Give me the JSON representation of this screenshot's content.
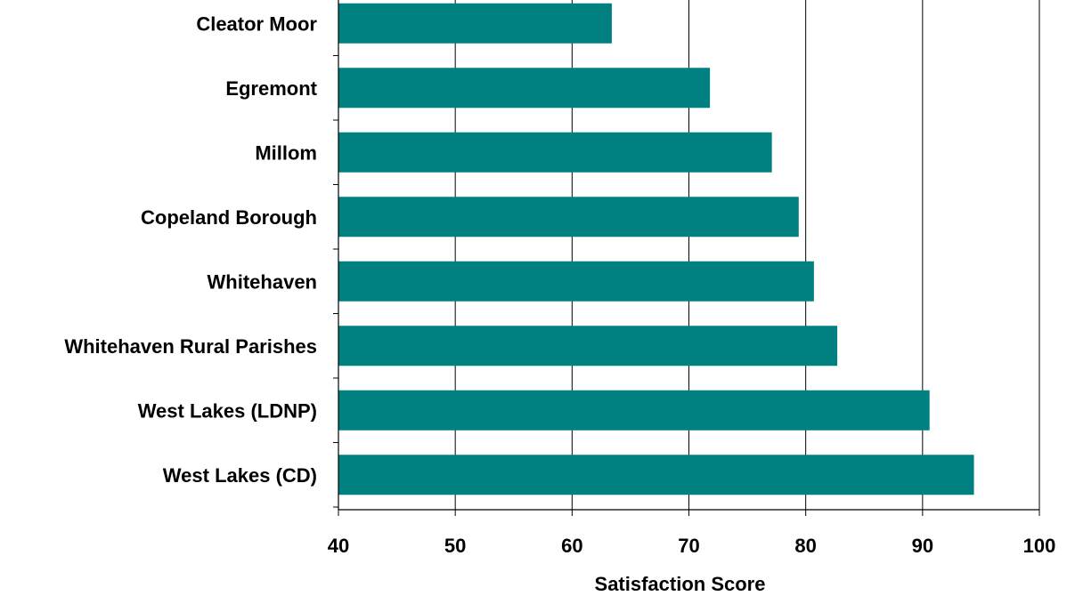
{
  "colors": {
    "bar": "#008080",
    "grid": "#000000",
    "axis": "#000000",
    "text": "#000000"
  },
  "chart_data": {
    "type": "bar",
    "orientation": "horizontal",
    "categories": [
      "Cleator Moor",
      "Egremont",
      "Millom",
      "Copeland Borough",
      "Whitehaven",
      "Whitehaven Rural Parishes",
      "West Lakes (LDNP)",
      "West Lakes (CD)"
    ],
    "values": [
      63.4,
      71.8,
      77.1,
      79.4,
      80.7,
      82.7,
      90.6,
      94.4
    ],
    "xlabel": "Satisfaction Score",
    "ylabel": "",
    "xlim": [
      40,
      100
    ],
    "xticks": [
      40,
      50,
      60,
      70,
      80,
      90,
      100
    ],
    "grid": "vertical",
    "legend": "none"
  }
}
